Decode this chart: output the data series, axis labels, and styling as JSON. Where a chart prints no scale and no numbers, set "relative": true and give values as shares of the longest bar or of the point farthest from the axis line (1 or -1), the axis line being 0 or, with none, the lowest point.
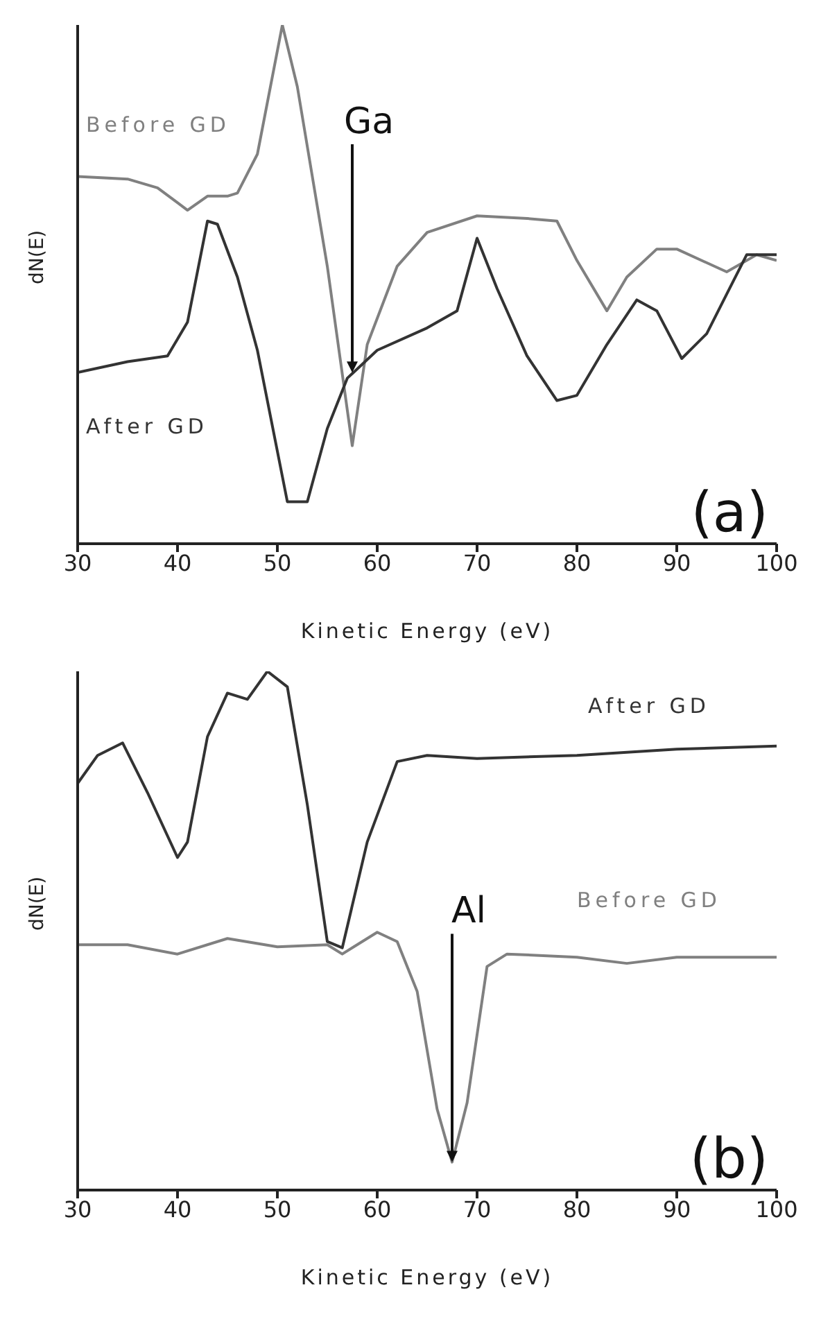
{
  "chart_data": [
    {
      "type": "line",
      "relative": true,
      "xlabel": "Kinetic Energy (eV)",
      "ylabel": "dN(E)",
      "xlim": [
        30,
        100
      ],
      "xticks": [
        30,
        40,
        50,
        60,
        70,
        80,
        90,
        100
      ],
      "legend": false,
      "grid": false,
      "marker": "none",
      "tick_labels": "x",
      "annotations": [
        "(a)",
        {
          "text": "Ga",
          "x": 57.5,
          "y": 0.33
        }
      ],
      "series": [
        {
          "name": "Before GD",
          "color": "#808080",
          "x": [
            30,
            35,
            38,
            41,
            43,
            45,
            46,
            48,
            50.5,
            52,
            55,
            57.5,
            59,
            62,
            65,
            70,
            75,
            78,
            80,
            83,
            85,
            88,
            90,
            95,
            98,
            100
          ],
          "values": [
            0.708,
            0.703,
            0.686,
            0.643,
            0.67,
            0.67,
            0.676,
            0.751,
            1.0,
            0.881,
            0.535,
            0.189,
            0.384,
            0.535,
            0.6,
            0.632,
            0.627,
            0.622,
            0.546,
            0.449,
            0.514,
            0.568,
            0.568,
            0.524,
            0.557,
            0.546
          ]
        },
        {
          "name": "After GD",
          "color": "#333333",
          "x": [
            30,
            35,
            39,
            41,
            43,
            44,
            46,
            48,
            51,
            53,
            55,
            57,
            60,
            65,
            68,
            70,
            72,
            75,
            78,
            80,
            83,
            86,
            88,
            90.5,
            93,
            95,
            97,
            100
          ],
          "values": [
            0.33,
            0.351,
            0.362,
            0.427,
            0.622,
            0.616,
            0.514,
            0.373,
            0.081,
            0.081,
            0.222,
            0.319,
            0.373,
            0.416,
            0.449,
            0.589,
            0.492,
            0.362,
            0.276,
            0.286,
            0.384,
            0.47,
            0.449,
            0.357,
            0.405,
            0.481,
            0.557,
            0.557
          ]
        }
      ]
    },
    {
      "type": "line",
      "relative": true,
      "xlabel": "Kinetic Energy (eV)",
      "ylabel": "dN(E)",
      "xlim": [
        30,
        100
      ],
      "xticks": [
        30,
        40,
        50,
        60,
        70,
        80,
        90,
        100
      ],
      "legend": false,
      "grid": false,
      "marker": "none",
      "tick_labels": "x",
      "annotations": [
        "(b)",
        {
          "text": "Al",
          "x": 67.5,
          "y": 0.054
        }
      ],
      "series": [
        {
          "name": "After GD",
          "color": "#333333",
          "x": [
            30,
            32,
            34.5,
            37,
            40,
            41,
            43,
            45,
            47,
            49,
            51,
            53,
            55,
            56.5,
            59,
            62,
            65,
            70,
            80,
            90,
            100
          ],
          "values": [
            0.784,
            0.838,
            0.862,
            0.766,
            0.641,
            0.671,
            0.874,
            0.958,
            0.946,
            1.0,
            0.97,
            0.743,
            0.479,
            0.467,
            0.671,
            0.826,
            0.838,
            0.832,
            0.838,
            0.85,
            0.856
          ]
        },
        {
          "name": "Before GD",
          "color": "#808080",
          "x": [
            30,
            35,
            40,
            45,
            50,
            55,
            56.5,
            60,
            62,
            64,
            66,
            67.5,
            69,
            71,
            73,
            80,
            85,
            90,
            100
          ],
          "values": [
            0.473,
            0.473,
            0.455,
            0.485,
            0.469,
            0.473,
            0.455,
            0.497,
            0.479,
            0.383,
            0.156,
            0.054,
            0.168,
            0.431,
            0.455,
            0.449,
            0.437,
            0.449,
            0.449
          ]
        }
      ]
    }
  ]
}
